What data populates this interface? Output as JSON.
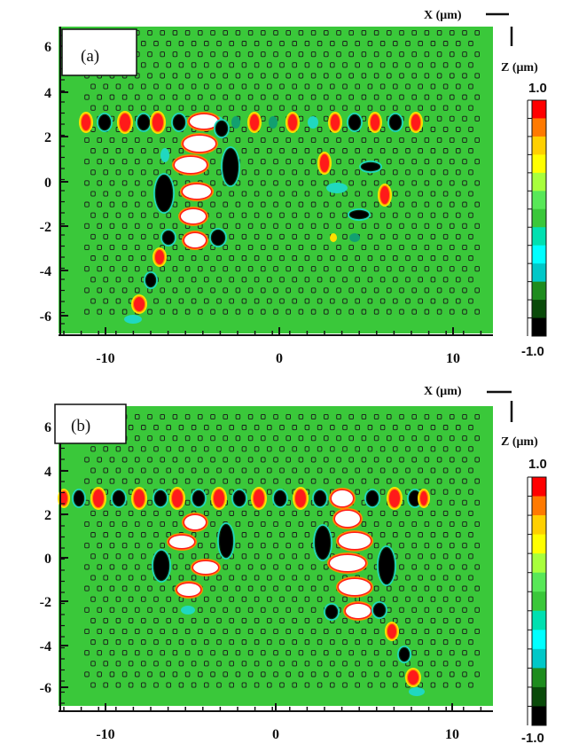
{
  "panels": [
    {
      "label": "(a)",
      "x_tick_labels": [
        "-10",
        "0",
        "10"
      ],
      "y_tick_labels": [
        "6",
        "4",
        "2",
        "0",
        "-2",
        "-4",
        "-6"
      ],
      "compass": {
        "x_label": "X (μm)",
        "z_label": "Z (μm)"
      },
      "colorbar": {
        "max_label": "1.0",
        "min_label": "-1.0"
      }
    },
    {
      "label": "(b)",
      "x_tick_labels": [
        "-10",
        "0",
        "10"
      ],
      "y_tick_labels": [
        "6",
        "4",
        "2",
        "0",
        "-2",
        "-4",
        "-6"
      ],
      "compass": {
        "x_label": "X (μm)",
        "z_label": "Z (μm)"
      },
      "colorbar": {
        "max_label": "1.0",
        "min_label": "-1.0"
      }
    }
  ],
  "colors": {
    "background_field": "#3ac83a",
    "colorbar_steps": [
      "#ff0000",
      "#ff7a00",
      "#ffd000",
      "#ffff00",
      "#a8ff3c",
      "#58e858",
      "#3ac83a",
      "#00e0b0",
      "#00ffff",
      "#00c8c8",
      "#1e8c1e",
      "#0a4a0a",
      "#000000"
    ]
  }
}
